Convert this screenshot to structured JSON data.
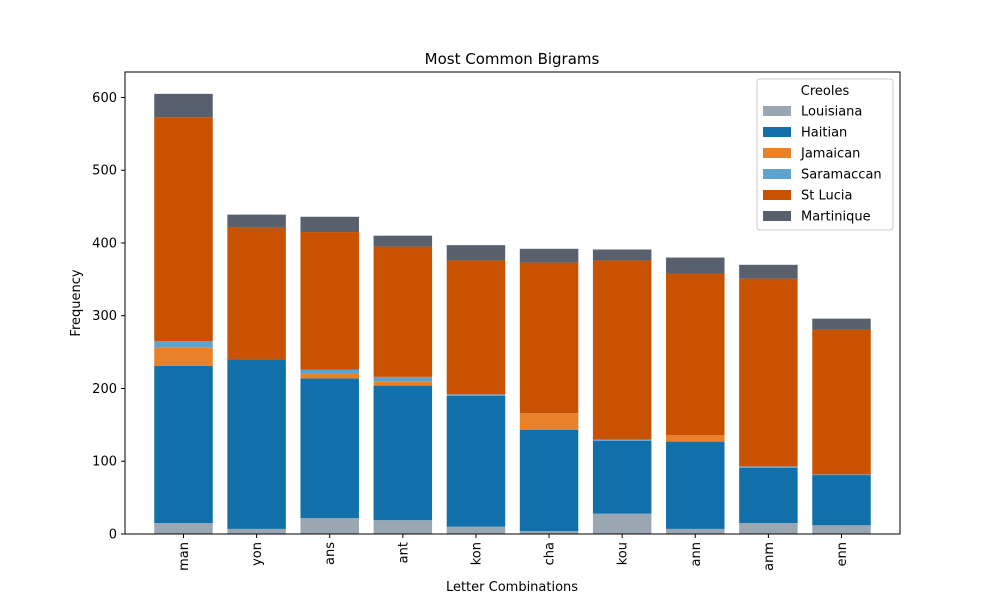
{
  "chart_data": {
    "type": "bar",
    "stacked": true,
    "title": "Most Common Bigrams",
    "xlabel": "Letter Combinations",
    "ylabel": "Frequency",
    "ylim": [
      0,
      635
    ],
    "yticks": [
      0,
      100,
      200,
      300,
      400,
      500,
      600
    ],
    "grid": false,
    "categories": [
      "man",
      "yon",
      "ans",
      "ant",
      "kon",
      "cha",
      "kou",
      "ann",
      "anm",
      "enn"
    ],
    "legend": {
      "title": "Creoles",
      "placement": "top-right"
    },
    "series": [
      {
        "name": "Louisiana",
        "color": "#9aa6b2",
        "values": [
          15,
          7,
          22,
          19,
          10,
          4,
          28,
          7,
          15,
          12
        ]
      },
      {
        "name": "Haitian",
        "color": "#1170aa",
        "values": [
          216,
          233,
          192,
          185,
          180,
          139,
          100,
          120,
          76,
          69
        ]
      },
      {
        "name": "Jamaican",
        "color": "#e8812a",
        "values": [
          25,
          0,
          6,
          6,
          0,
          23,
          0,
          9,
          0,
          0
        ]
      },
      {
        "name": "Saramaccan",
        "color": "#5fa2ce",
        "values": [
          9,
          0,
          6,
          6,
          2,
          0,
          2,
          0,
          2,
          1
        ]
      },
      {
        "name": "St Lucia",
        "color": "#c85200",
        "values": [
          308,
          182,
          189,
          179,
          184,
          207,
          246,
          222,
          258,
          199
        ]
      },
      {
        "name": "Martinique",
        "color": "#57606c",
        "values": [
          32,
          17,
          21,
          15,
          21,
          19,
          15,
          22,
          19,
          15
        ]
      }
    ]
  }
}
